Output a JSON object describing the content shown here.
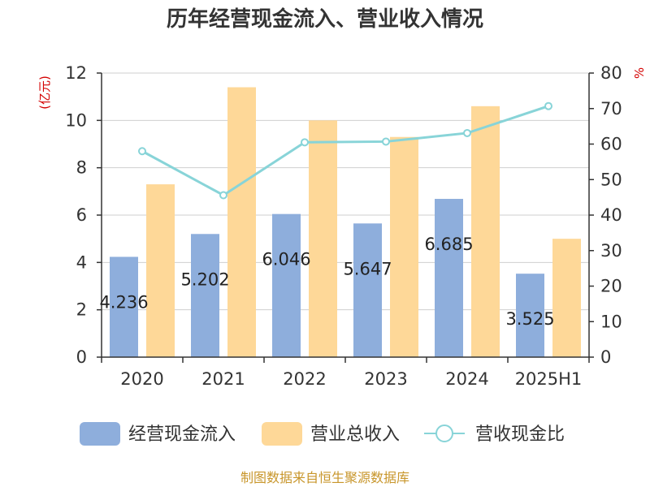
{
  "chart_data": {
    "type": "bar",
    "title": "历年经营现金流入、营业收入情况",
    "left_unit": "(亿元)",
    "right_unit": "%",
    "categories": [
      "2020",
      "2021",
      "2022",
      "2023",
      "2024",
      "2025H1"
    ],
    "ylim_left": [
      0,
      12
    ],
    "yticks_left": [
      "0",
      "2",
      "4",
      "6",
      "8",
      "10",
      "12"
    ],
    "ylim_right": [
      0,
      80
    ],
    "yticks_right": [
      "0",
      "10",
      "20",
      "30",
      "40",
      "50",
      "60",
      "70",
      "80"
    ],
    "grid": true,
    "legend_position": "bottom",
    "series": [
      {
        "name": "经营现金流入",
        "type": "bar",
        "axis": "left",
        "color": "#8eaedc",
        "values": [
          4.236,
          5.202,
          6.046,
          5.647,
          6.685,
          3.525
        ],
        "labels": [
          "4.236",
          "5.202",
          "6.046",
          "5.647",
          "6.685",
          "3.525"
        ]
      },
      {
        "name": "营业总收入",
        "type": "bar",
        "axis": "left",
        "color": "#fed898",
        "values": [
          7.3,
          11.4,
          10.0,
          9.3,
          10.6,
          5.0
        ]
      },
      {
        "name": "营收现金比",
        "type": "line",
        "axis": "right",
        "color": "#88d4d8",
        "values": [
          58.0,
          45.6,
          60.5,
          60.7,
          63.1,
          70.7
        ]
      }
    ]
  },
  "source": "制图数据来自恒生聚源数据库"
}
